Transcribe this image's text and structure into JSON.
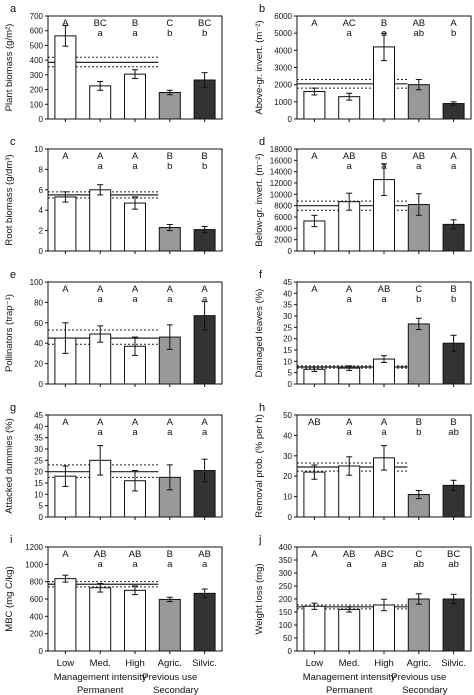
{
  "figure": {
    "x_categories": [
      "Low",
      "Med.",
      "High",
      "Agric.",
      "Silvic."
    ],
    "group_labels": [
      {
        "sub": "Management intensity",
        "main": "Permanent"
      },
      {
        "sub": "Previous use",
        "main": "Secondary"
      }
    ],
    "bar_colors": [
      "#ffffff",
      "#ffffff",
      "#ffffff",
      "#999999",
      "#333333"
    ]
  },
  "chart_data": [
    {
      "panel": "a",
      "type": "bar",
      "ylabel": "Plant biomass (g/m²)",
      "ylim": [
        0,
        700
      ],
      "yticks": [
        0,
        100,
        200,
        300,
        400,
        500,
        600,
        700
      ],
      "values": [
        565,
        225,
        305,
        180,
        265
      ],
      "errors": [
        70,
        30,
        30,
        15,
        50
      ],
      "letters_top": [
        "A",
        "BC",
        "B",
        "C",
        "BC"
      ],
      "letters_bottom": [
        "",
        "a",
        "a",
        "b",
        "b"
      ],
      "reference": {
        "mean": 385,
        "ci_low": 355,
        "ci_high": 420
      }
    },
    {
      "panel": "b",
      "type": "bar",
      "ylabel": "Above-gr. invert. (m⁻²)",
      "ylim": [
        0,
        6000
      ],
      "yticks": [
        0,
        1000,
        2000,
        3000,
        4000,
        5000,
        6000
      ],
      "values": [
        1600,
        1300,
        4200,
        2000,
        900
      ],
      "errors": [
        200,
        200,
        800,
        300,
        100
      ],
      "letters_top": [
        "A",
        "AC",
        "B",
        "AB",
        "A"
      ],
      "letters_bottom": [
        "",
        "a",
        "a",
        "ab",
        "b"
      ],
      "reference": {
        "mean": 2050,
        "ci_low": 1800,
        "ci_high": 2300
      }
    },
    {
      "panel": "c",
      "type": "bar",
      "ylabel": "Root biomass (g/dm³)",
      "ylim": [
        0,
        10
      ],
      "yticks": [
        0,
        2,
        4,
        6,
        8,
        10
      ],
      "values": [
        5.3,
        6.0,
        4.7,
        2.3,
        2.1
      ],
      "errors": [
        0.5,
        0.5,
        0.6,
        0.3,
        0.3
      ],
      "letters_top": [
        "A",
        "A",
        "A",
        "B",
        "B"
      ],
      "letters_bottom": [
        "",
        "a",
        "a",
        "b",
        "b"
      ],
      "reference": {
        "mean": 5.5,
        "ci_low": 5.2,
        "ci_high": 5.8
      }
    },
    {
      "panel": "d",
      "type": "bar",
      "ylabel": "Below-gr. invert. (m⁻²)",
      "ylim": [
        0,
        18000
      ],
      "yticks": [
        0,
        2000,
        4000,
        6000,
        8000,
        10000,
        12000,
        14000,
        16000,
        18000
      ],
      "values": [
        5300,
        8700,
        12600,
        8200,
        4700
      ],
      "errors": [
        1000,
        1500,
        2800,
        1900,
        800
      ],
      "letters_top": [
        "A",
        "AB",
        "B",
        "AB",
        "A"
      ],
      "letters_bottom": [
        "",
        "a",
        "a",
        "a",
        "a"
      ],
      "reference": {
        "mean": 8000,
        "ci_low": 7200,
        "ci_high": 8800
      }
    },
    {
      "panel": "e",
      "type": "bar",
      "ylabel": "Pollinators (trap⁻¹)",
      "ylim": [
        0,
        100
      ],
      "yticks": [
        0,
        20,
        40,
        60,
        80,
        100
      ],
      "values": [
        45,
        49,
        37,
        46,
        67
      ],
      "errors": [
        15,
        8,
        9,
        12,
        14
      ],
      "letters_top": [
        "A",
        "A",
        "A",
        "A",
        "A"
      ],
      "letters_bottom": [
        "",
        "a",
        "a",
        "a",
        "a"
      ],
      "reference": {
        "mean": 45,
        "ci_low": 39,
        "ci_high": 53
      }
    },
    {
      "panel": "f",
      "type": "bar",
      "ylabel": "Damaged leaves (%)",
      "ylim": [
        0,
        45
      ],
      "yticks": [
        0,
        5,
        10,
        15,
        20,
        25,
        30,
        35,
        40,
        45
      ],
      "values": [
        6.5,
        7,
        11,
        26.5,
        18
      ],
      "errors": [
        1,
        1,
        1.5,
        2.5,
        3.5
      ],
      "letters_top": [
        "A",
        "A",
        "AB",
        "C",
        "B"
      ],
      "letters_bottom": [
        "",
        "a",
        "a",
        "b",
        "b"
      ],
      "reference": {
        "mean": 7.5,
        "ci_low": 7,
        "ci_high": 8
      }
    },
    {
      "panel": "g",
      "type": "bar",
      "ylabel": "Attacked dummies (%)",
      "ylim": [
        0,
        45
      ],
      "yticks": [
        0,
        5,
        10,
        15,
        20,
        25,
        30,
        35,
        40,
        45
      ],
      "values": [
        18,
        25,
        16,
        17.5,
        20.5
      ],
      "errors": [
        4.5,
        6.5,
        4.5,
        5.5,
        5
      ],
      "letters_top": [
        "A",
        "A",
        "A",
        "A",
        "A"
      ],
      "letters_bottom": [
        "",
        "a",
        "a",
        "a",
        "a"
      ],
      "reference": {
        "mean": 20,
        "ci_low": 17.5,
        "ci_high": 23
      }
    },
    {
      "panel": "h",
      "type": "bar",
      "ylabel": "Removal prob. (% per h)",
      "ylim": [
        0,
        50
      ],
      "yticks": [
        0,
        10,
        20,
        30,
        40,
        50
      ],
      "values": [
        22,
        25,
        29,
        11,
        15.5
      ],
      "errors": [
        3.5,
        4.5,
        6,
        2,
        2.5
      ],
      "letters_top": [
        "AB",
        "A",
        "A",
        "B",
        "B"
      ],
      "letters_bottom": [
        "",
        "a",
        "a",
        "b",
        "ab"
      ],
      "reference": {
        "mean": 24.5,
        "ci_low": 22.5,
        "ci_high": 26.5
      }
    },
    {
      "panel": "i",
      "type": "bar",
      "ylabel": "MBC (mg C/kg)",
      "ylim": [
        0,
        1200
      ],
      "yticks": [
        0,
        200,
        400,
        600,
        800,
        1000,
        1200
      ],
      "values": [
        835,
        730,
        700,
        595,
        665
      ],
      "errors": [
        40,
        50,
        50,
        25,
        50
      ],
      "letters_top": [
        "A",
        "AB",
        "AB",
        "B",
        "AB"
      ],
      "letters_bottom": [
        "",
        "a",
        "a",
        "a",
        "a"
      ],
      "reference": {
        "mean": 770,
        "ci_low": 740,
        "ci_high": 800
      }
    },
    {
      "panel": "j",
      "type": "bar",
      "ylabel": "Weight loss (mg)",
      "ylim": [
        0,
        400
      ],
      "yticks": [
        0,
        50,
        100,
        150,
        200,
        250,
        300,
        350,
        400
      ],
      "values": [
        172,
        160,
        177,
        200,
        200
      ],
      "errors": [
        12,
        10,
        22,
        20,
        18
      ],
      "letters_top": [
        "A",
        "AB",
        "ABC",
        "C",
        "BC"
      ],
      "letters_bottom": [
        "",
        "a",
        "a",
        "ab",
        "ab"
      ],
      "reference": {
        "mean": 170,
        "ci_low": 162,
        "ci_high": 177
      }
    }
  ]
}
